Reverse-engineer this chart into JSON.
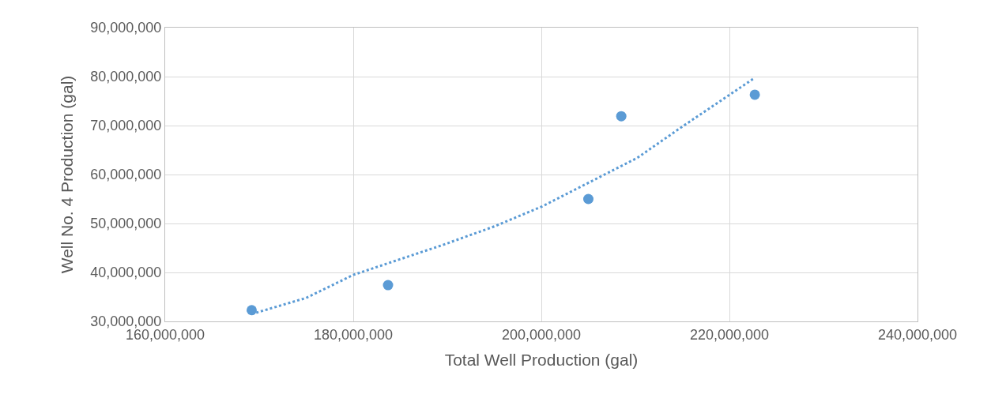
{
  "chart_data": {
    "type": "scatter",
    "xlabel": "Total Well Production (gal)",
    "ylabel": "Well No. 4 Production (gal)",
    "xlim": [
      160000000,
      240000000
    ],
    "xticks": [
      {
        "value": 160000000,
        "label": "160,000,000"
      },
      {
        "value": 180000000,
        "label": "180,000,000"
      },
      {
        "value": 200000000,
        "label": "200,000,000"
      },
      {
        "value": 220000000,
        "label": "220,000,000"
      },
      {
        "value": 240000000,
        "label": "240,000,000"
      }
    ],
    "ylim": [
      30000000,
      90000000
    ],
    "yticks": [
      {
        "value": 30000000,
        "label": "30,000,000"
      },
      {
        "value": 40000000,
        "label": "40,000,000"
      },
      {
        "value": 50000000,
        "label": "50,000,000"
      },
      {
        "value": 60000000,
        "label": "60,000,000"
      },
      {
        "value": 70000000,
        "label": "70,000,000"
      },
      {
        "value": 80000000,
        "label": "80,000,000"
      },
      {
        "value": 90000000,
        "label": "90,000,000"
      }
    ],
    "grid": true,
    "marker": "circle",
    "series": [
      {
        "color": "#5b9bd5",
        "x": [
          169200000,
          183700000,
          205000000,
          208500000,
          222700000
        ],
        "values": [
          32300000,
          37400000,
          55000000,
          71900000,
          76300000
        ]
      },
      {
        "type": "line",
        "color": "#5b9bd5",
        "line_style": "dotted",
        "marker": "none",
        "x": [
          169200000,
          175000000,
          180000000,
          189500000,
          195000000,
          200100000,
          210200000,
          215000000,
          222500000
        ],
        "values": [
          31500000,
          34800000,
          39500000,
          45600000,
          49400000,
          53500000,
          63400000,
          69800000,
          79500000
        ]
      }
    ]
  }
}
